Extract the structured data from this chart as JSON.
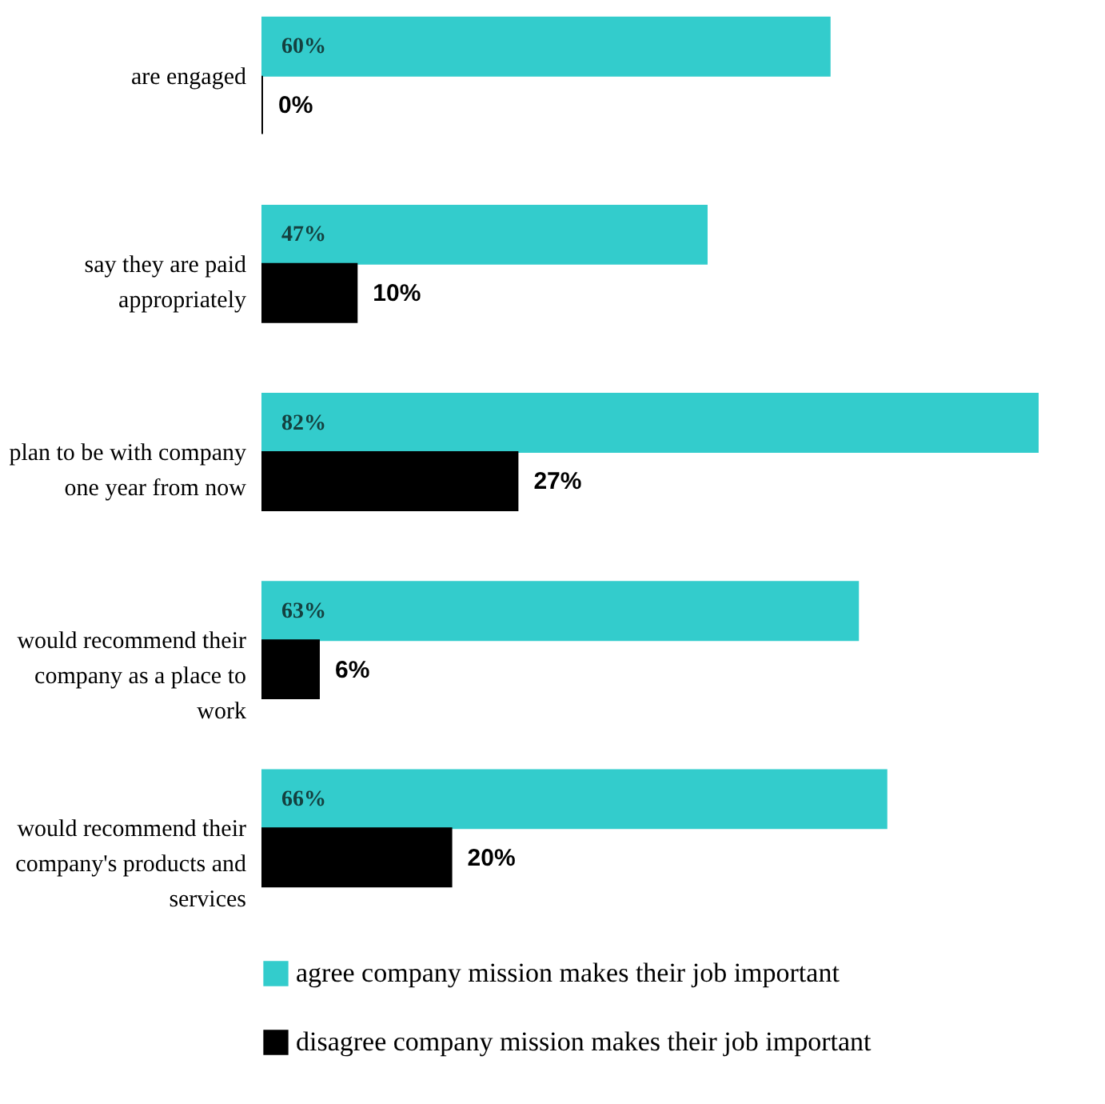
{
  "chart_data": {
    "type": "bar",
    "orientation": "horizontal",
    "categories": [
      "are engaged",
      "say they are paid appropriately",
      "plan to be with company one year from now",
      "would recommend their company as a place to work",
      "would recommend their company's products and services"
    ],
    "series": [
      {
        "name": "agree company mission makes their job important",
        "color": "#33cccc",
        "values": [
          60,
          47,
          82,
          63,
          66
        ],
        "value_labels": [
          "60%",
          "47%",
          "82%",
          "63%",
          "66%"
        ]
      },
      {
        "name": "disagree company mission makes their job important",
        "color": "#000000",
        "values": [
          0,
          10,
          27,
          6,
          20
        ],
        "value_labels": [
          "0%",
          "10%",
          "27%",
          "6%",
          "20%"
        ]
      }
    ],
    "legend": "bottom"
  }
}
